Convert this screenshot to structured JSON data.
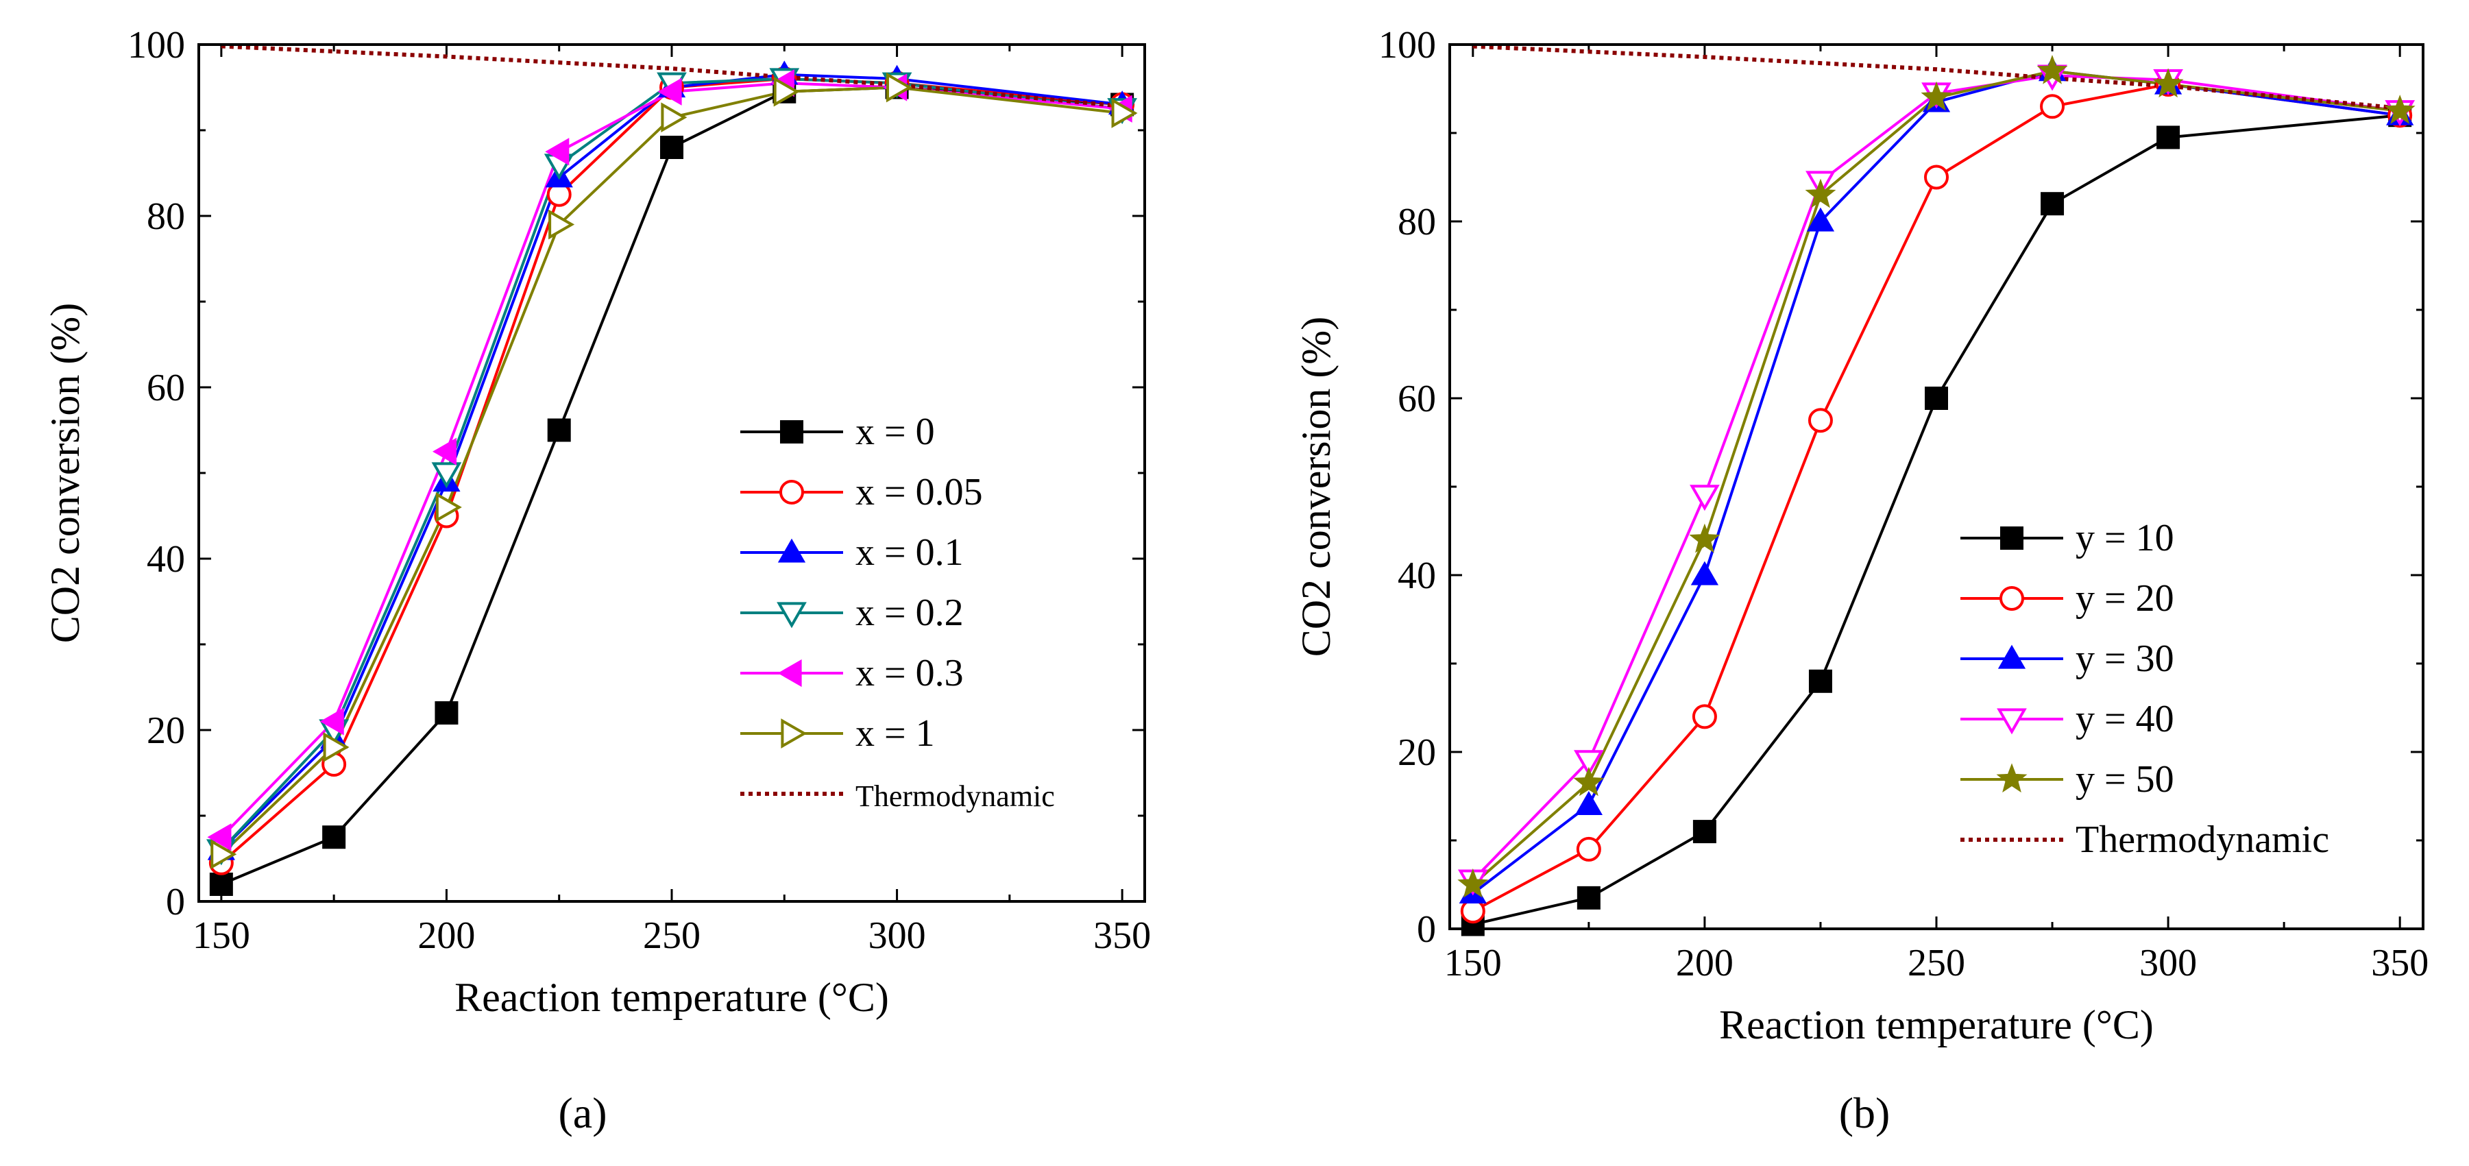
{
  "figure": {
    "panel_labels": [
      "(a)",
      "(b)"
    ]
  },
  "chart_data": [
    {
      "type": "line",
      "panel": "a",
      "title": "",
      "xlabel": "Reaction temperature (°C)",
      "ylabel": "CO2 conversion (%)",
      "xlim": [
        145,
        355
      ],
      "ylim": [
        0,
        100
      ],
      "xticks": [
        150,
        200,
        250,
        300,
        350
      ],
      "yticks": [
        0,
        20,
        40,
        60,
        80,
        100
      ],
      "legend_position": "center-right",
      "series": [
        {
          "name": "x = 0",
          "var": "x",
          "value_label": "= 0",
          "color": "#000000",
          "marker": "square-filled",
          "x": [
            150,
            175,
            200,
            225,
            250,
            275,
            300,
            350
          ],
          "y": [
            2,
            7.5,
            22,
            55,
            88,
            94.5,
            95,
            93
          ]
        },
        {
          "name": "x = 0.05",
          "var": "x",
          "value_label": "= 0.05",
          "color": "#ff0000",
          "marker": "circle-open",
          "x": [
            150,
            175,
            200,
            225,
            250,
            275,
            300,
            350
          ],
          "y": [
            4.5,
            16,
            45,
            82.5,
            95,
            96,
            95.5,
            93
          ]
        },
        {
          "name": "x = 0.1",
          "var": "x",
          "value_label": "= 0.1",
          "color": "#0000ff",
          "marker": "triangle-up-filled",
          "x": [
            150,
            175,
            200,
            225,
            250,
            275,
            300,
            350
          ],
          "y": [
            6,
            19,
            49,
            84.5,
            95,
            96.5,
            96,
            93
          ]
        },
        {
          "name": "x = 0.2",
          "var": "x",
          "value_label": "= 0.2",
          "color": "#008080",
          "marker": "triangle-down-open",
          "x": [
            150,
            175,
            200,
            225,
            250,
            275,
            300,
            350
          ],
          "y": [
            6,
            20,
            50,
            86,
            95.5,
            96,
            95.5,
            92.5
          ]
        },
        {
          "name": "x = 0.3",
          "var": "x",
          "value_label": "= 0.3",
          "color": "#ff00ff",
          "marker": "triangle-left-filled",
          "x": [
            150,
            175,
            200,
            225,
            250,
            275,
            300,
            350
          ],
          "y": [
            7.5,
            21,
            52.5,
            87.5,
            94.5,
            95.5,
            95,
            92.5
          ]
        },
        {
          "name": "x = 1",
          "var": "x",
          "value_label": "= 1",
          "color": "#808000",
          "marker": "triangle-right-open",
          "x": [
            150,
            175,
            200,
            225,
            250,
            275,
            300,
            350
          ],
          "y": [
            5.5,
            18,
            46,
            79,
            91.5,
            94.5,
            95,
            92
          ]
        },
        {
          "name": "Thermodynamic",
          "color": "#8b0000",
          "line": "dotted",
          "marker": "none",
          "x": [
            150,
            200,
            250,
            275,
            300,
            350
          ],
          "y": [
            99.8,
            98.6,
            97.2,
            96.2,
            95.3,
            92.8
          ]
        }
      ]
    },
    {
      "type": "line",
      "panel": "b",
      "title": "",
      "xlabel": "Reaction temperature (°C)",
      "ylabel": "CO2 conversion (%)",
      "xlim": [
        145,
        355
      ],
      "ylim": [
        0,
        100
      ],
      "xticks": [
        150,
        200,
        250,
        300,
        350
      ],
      "yticks": [
        0,
        20,
        40,
        60,
        80,
        100
      ],
      "legend_position": "center-right",
      "series": [
        {
          "name": "y = 10",
          "var": "y",
          "value_label": "= 10",
          "color": "#000000",
          "marker": "square-filled",
          "x": [
            150,
            175,
            200,
            225,
            250,
            275,
            300,
            350
          ],
          "y": [
            0.5,
            3.5,
            11,
            28,
            60,
            82,
            89.5,
            92
          ]
        },
        {
          "name": "y = 20",
          "var": "y",
          "value_label": "= 20",
          "color": "#ff0000",
          "marker": "circle-open",
          "x": [
            150,
            175,
            200,
            225,
            250,
            275,
            300,
            350
          ],
          "y": [
            2,
            9,
            24,
            57.5,
            85,
            93,
            95.5,
            92
          ]
        },
        {
          "name": "y = 30",
          "var": "y",
          "value_label": "= 30",
          "color": "#0000ff",
          "marker": "triangle-up-filled",
          "x": [
            150,
            175,
            200,
            225,
            250,
            275,
            300,
            350
          ],
          "y": [
            4,
            14,
            40,
            80,
            93.5,
            97,
            95.5,
            92
          ]
        },
        {
          "name": "y = 40",
          "var": "y",
          "value_label": "= 40",
          "color": "#ff00ff",
          "marker": "triangle-down-open",
          "x": [
            150,
            175,
            200,
            225,
            250,
            275,
            300,
            350
          ],
          "y": [
            5.5,
            19,
            49,
            84.5,
            94.5,
            96.5,
            96,
            92.5
          ]
        },
        {
          "name": "y = 50",
          "var": "y",
          "value_label": "= 50",
          "color": "#808000",
          "marker": "star-filled",
          "x": [
            150,
            175,
            200,
            225,
            250,
            275,
            300,
            350
          ],
          "y": [
            5,
            16.5,
            44,
            83,
            94,
            97,
            95.5,
            92.5
          ]
        },
        {
          "name": "Thermodynamic",
          "color": "#8b0000",
          "line": "dotted",
          "marker": "none",
          "x": [
            150,
            200,
            250,
            275,
            300,
            350
          ],
          "y": [
            99.8,
            98.6,
            97.2,
            96.2,
            95.3,
            92.8
          ]
        }
      ]
    }
  ]
}
